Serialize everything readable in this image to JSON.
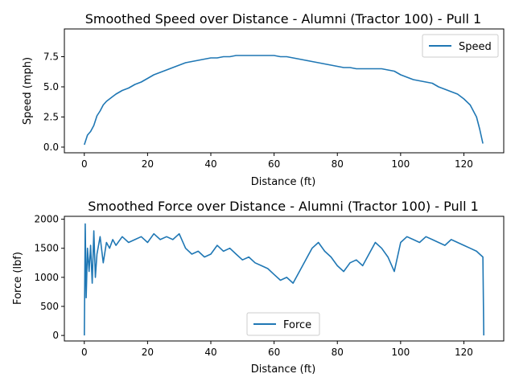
{
  "charts": [
    {
      "type": "line",
      "title": "Smoothed Speed over Distance - Alumni (Tractor 100) - Pull 1",
      "xlabel": "Distance (ft)",
      "ylabel": "Speed (mph)",
      "xlim": [
        -6.3,
        132.6
      ],
      "ylim": [
        -0.47,
        9.8
      ],
      "xticks": [
        0,
        20,
        40,
        60,
        80,
        100,
        120
      ],
      "yticks": [
        0.0,
        2.5,
        5.0,
        7.5
      ],
      "ytick_labels": [
        "0.0",
        "2.5",
        "5.0",
        "7.5"
      ],
      "legend_position": "upper right",
      "line_color": "#1f77b4",
      "series": [
        {
          "name": "Speed",
          "x": [
            0,
            1,
            2,
            3,
            4,
            5,
            6,
            7,
            8,
            9,
            10,
            12,
            14,
            16,
            18,
            20,
            22,
            24,
            26,
            28,
            30,
            32,
            34,
            36,
            38,
            40,
            42,
            44,
            46,
            48,
            50,
            52,
            54,
            56,
            58,
            60,
            62,
            64,
            66,
            68,
            70,
            72,
            74,
            76,
            78,
            80,
            82,
            84,
            86,
            88,
            90,
            92,
            94,
            96,
            98,
            100,
            102,
            104,
            106,
            108,
            110,
            112,
            114,
            116,
            118,
            120,
            122,
            124,
            125,
            126
          ],
          "y": [
            0.2,
            1.0,
            1.3,
            1.8,
            2.6,
            3.0,
            3.5,
            3.8,
            4.0,
            4.2,
            4.4,
            4.7,
            4.9,
            5.2,
            5.4,
            5.7,
            6.0,
            6.2,
            6.4,
            6.6,
            6.8,
            7.0,
            7.1,
            7.2,
            7.3,
            7.4,
            7.4,
            7.5,
            7.5,
            7.6,
            7.6,
            7.6,
            7.6,
            7.6,
            7.6,
            7.6,
            7.5,
            7.5,
            7.4,
            7.3,
            7.2,
            7.1,
            7.0,
            6.9,
            6.8,
            6.7,
            6.6,
            6.6,
            6.5,
            6.5,
            6.5,
            6.5,
            6.5,
            6.4,
            6.3,
            6.0,
            5.8,
            5.6,
            5.5,
            5.4,
            5.3,
            5.0,
            4.8,
            4.6,
            4.4,
            4.0,
            3.5,
            2.5,
            1.5,
            0.3
          ]
        }
      ]
    },
    {
      "type": "line",
      "title": "Smoothed Force over Distance - Alumni (Tractor 100) - Pull 1",
      "xlabel": "Distance (ft)",
      "ylabel": "Force (lbf)",
      "xlim": [
        -6.3,
        132.6
      ],
      "ylim": [
        -95,
        2050
      ],
      "xticks": [
        0,
        20,
        40,
        60,
        80,
        100,
        120
      ],
      "yticks": [
        0,
        500,
        1000,
        1500,
        2000
      ],
      "ytick_labels": [
        "0",
        "500",
        "1000",
        "1500",
        "2000"
      ],
      "legend_position": "lower center",
      "line_color": "#1f77b4",
      "series": [
        {
          "name": "Force",
          "x": [
            0,
            0.3,
            0.6,
            1,
            1.5,
            2,
            2.5,
            3,
            3.5,
            4,
            5,
            6,
            7,
            8,
            9,
            10,
            12,
            14,
            16,
            18,
            20,
            22,
            24,
            26,
            28,
            30,
            32,
            34,
            36,
            38,
            40,
            42,
            44,
            46,
            48,
            50,
            52,
            54,
            56,
            58,
            60,
            62,
            64,
            66,
            68,
            70,
            72,
            74,
            76,
            78,
            80,
            82,
            84,
            86,
            88,
            90,
            92,
            94,
            96,
            98,
            100,
            102,
            104,
            106,
            108,
            110,
            112,
            114,
            116,
            118,
            120,
            122,
            124,
            125,
            126,
            126.3
          ],
          "y": [
            0,
            1920,
            650,
            1500,
            1100,
            1550,
            900,
            1800,
            1000,
            1400,
            1700,
            1250,
            1600,
            1500,
            1650,
            1550,
            1700,
            1600,
            1650,
            1700,
            1600,
            1750,
            1650,
            1700,
            1650,
            1750,
            1500,
            1400,
            1450,
            1350,
            1400,
            1550,
            1450,
            1500,
            1400,
            1300,
            1350,
            1250,
            1200,
            1150,
            1050,
            950,
            1000,
            900,
            1100,
            1300,
            1500,
            1600,
            1450,
            1350,
            1200,
            1100,
            1250,
            1300,
            1200,
            1400,
            1600,
            1500,
            1350,
            1100,
            1600,
            1700,
            1650,
            1600,
            1700,
            1650,
            1600,
            1550,
            1650,
            1600,
            1550,
            1500,
            1450,
            1400,
            1350,
            0
          ]
        }
      ]
    }
  ]
}
